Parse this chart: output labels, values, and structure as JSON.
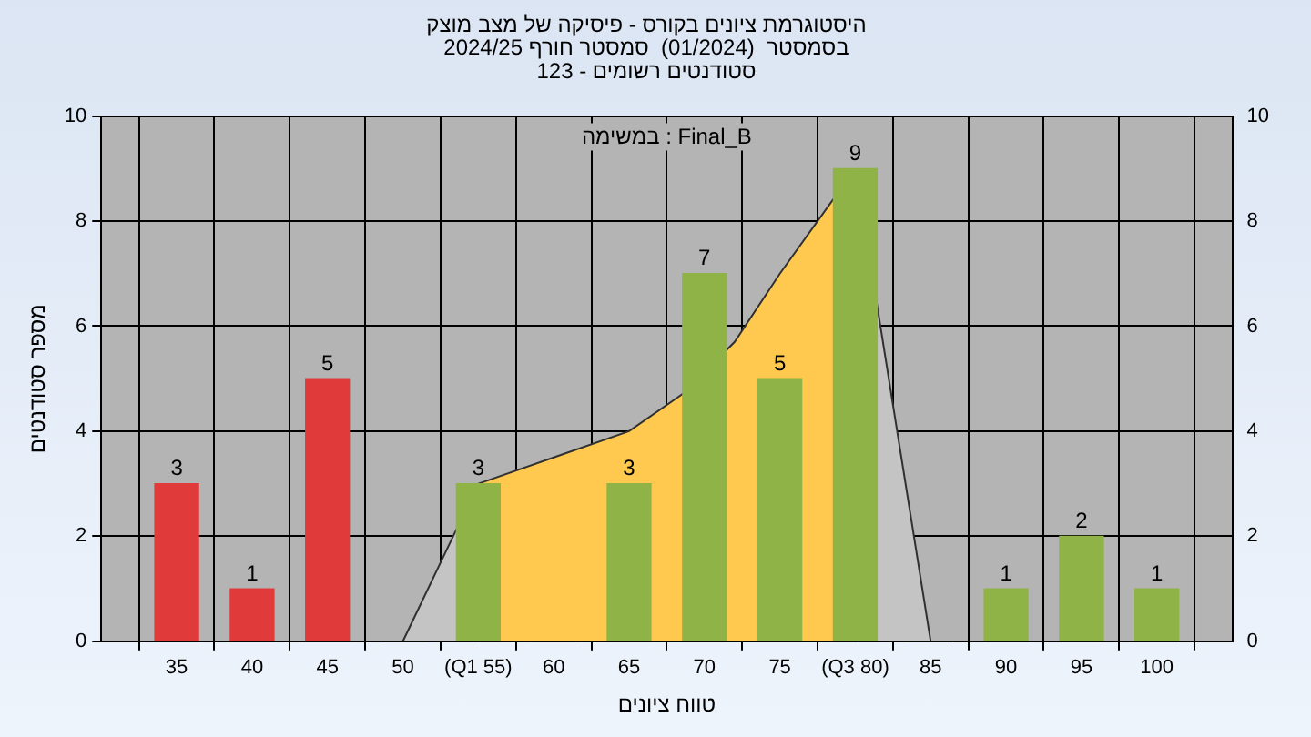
{
  "chart_data": {
    "type": "bar",
    "title": "היסטוגרמת ציונים בקורס - פיסיקה של מצב מוצק",
    "subtitle": "בסמסטר  (01/2024)  סמסטר חורף 2024/25\nסטודנטים רשומים - 123",
    "xlabel": "טווח ציונים",
    "ylabel": "מספר סטודנטים",
    "annotations": [
      "במשימה : Final_B"
    ],
    "series": [
      {
        "type": "area",
        "color": "#c4c4c4",
        "x": [
          50,
          55,
          70,
          80,
          85
        ],
        "values": [
          0,
          3,
          null,
          9,
          0
        ]
      },
      {
        "type": "area",
        "color": "#ffc94f",
        "x": [
          55,
          60,
          65,
          68.5,
          72,
          75,
          80
        ],
        "values": [
          3,
          3.5,
          4,
          4.7,
          5.7,
          7,
          9
        ]
      },
      {
        "x": [
          35,
          40,
          45,
          50,
          55,
          60,
          65,
          70,
          75,
          80,
          85,
          90,
          95,
          100
        ],
        "values": [
          3,
          1,
          5,
          0,
          3,
          0,
          3,
          7,
          5,
          9,
          0,
          1,
          2,
          1
        ],
        "colors": [
          "#e03a3a",
          "#e03a3a",
          "#e03a3a",
          "#8fb347",
          "#8fb347",
          "#8fb347",
          "#8fb347",
          "#8fb347",
          "#8fb347",
          "#8fb347",
          "#8fb347",
          "#8fb347",
          "#8fb347",
          "#8fb347"
        ],
        "value_labels": [
          "3",
          "1",
          "5",
          null,
          "3",
          null,
          "3",
          "7",
          "5",
          "9",
          null,
          "1",
          "2",
          "1"
        ]
      }
    ],
    "xlim": [
      30,
      105
    ],
    "xticks": [
      {
        "value": 30,
        "label": null
      },
      35,
      40,
      45,
      50,
      {
        "value": 55,
        "label": "(Q1 55)"
      },
      60,
      65,
      70,
      75,
      {
        "value": 80,
        "label": "(Q3 80)"
      },
      85,
      90,
      95,
      100,
      {
        "value": 105,
        "label": null
      }
    ],
    "ylim": [
      0,
      10
    ],
    "yticks": [
      0,
      2,
      4,
      6,
      8,
      10
    ],
    "y2lim": [
      0,
      10
    ],
    "y2ticks": [
      0,
      2,
      4,
      6,
      8,
      10
    ],
    "grid": true,
    "legend": false
  }
}
